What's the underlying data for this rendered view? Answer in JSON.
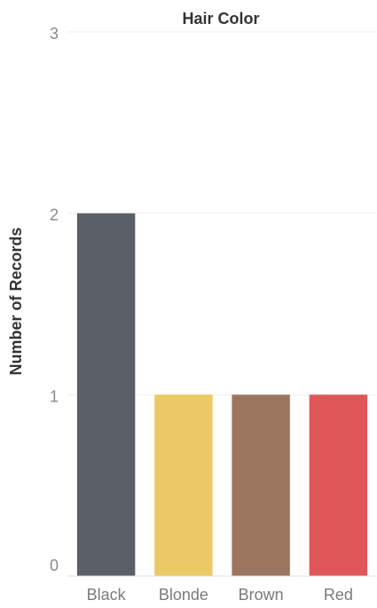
{
  "chart_data": {
    "type": "bar",
    "title": "Hair Color",
    "ylabel": "Number of Records",
    "xlabel": "",
    "categories": [
      "Black",
      "Blonde",
      "Brown",
      "Red"
    ],
    "values": [
      2,
      1,
      1,
      1
    ],
    "colors": [
      "#5b5f68",
      "#ecc964",
      "#9c755f",
      "#e05759"
    ],
    "ylim": [
      0,
      3
    ],
    "yticks": [
      0,
      1,
      2,
      3
    ],
    "grid": true,
    "legend": "none"
  }
}
